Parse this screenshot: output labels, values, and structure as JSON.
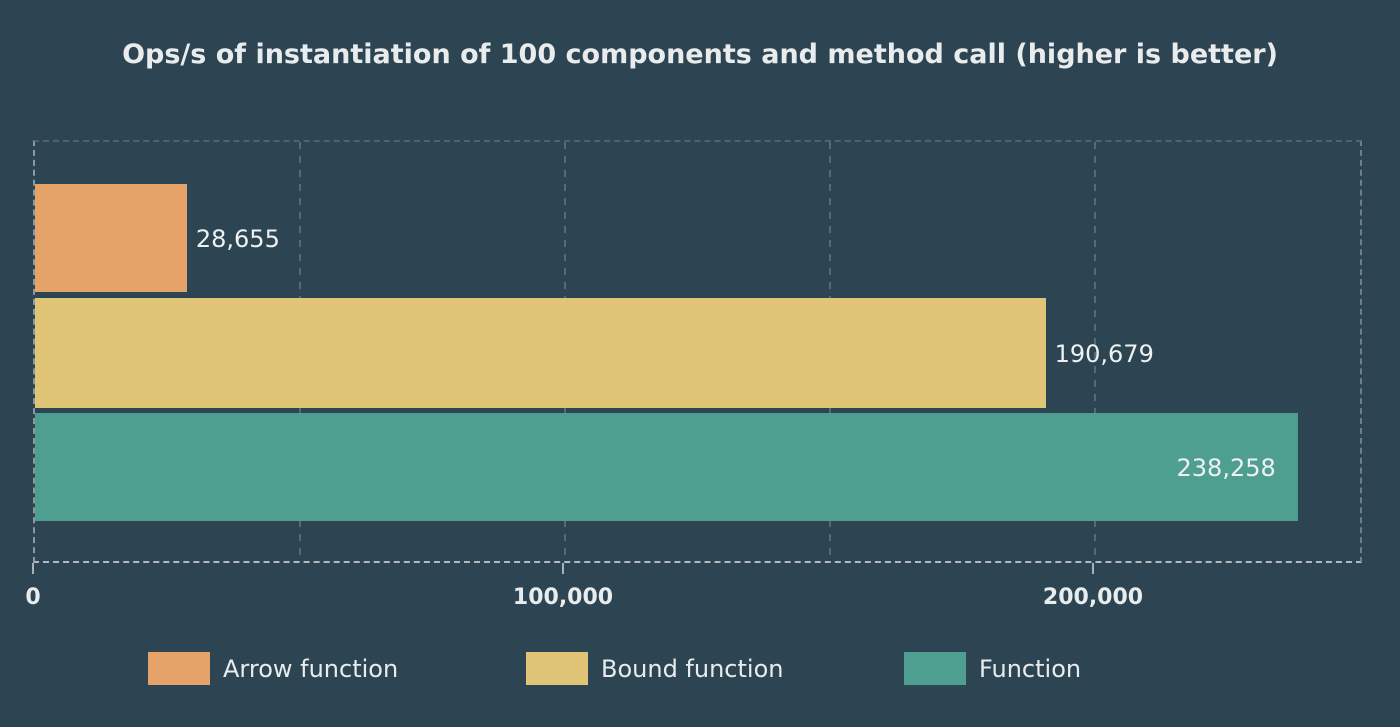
{
  "chart_data": {
    "type": "bar",
    "orientation": "horizontal",
    "title": "Ops/s of instantiation of 100 components and method call (higher is better)",
    "series": [
      {
        "name": "Arrow function",
        "value": 28655,
        "data_label": "28,655",
        "color": "#e6a369"
      },
      {
        "name": "Bound function",
        "value": 190679,
        "data_label": "190,679",
        "color": "#e1c577"
      },
      {
        "name": "Function",
        "value": 238258,
        "data_label": "238,258",
        "color": "#4f9f90"
      }
    ],
    "xlim": [
      0,
      250000
    ],
    "x_ticks": [
      {
        "value": 0,
        "label": "0"
      },
      {
        "value": 100000,
        "label": "100,000"
      },
      {
        "value": 200000,
        "label": "200,000"
      }
    ],
    "gridline_interval": 50000,
    "grid_style": "dashed",
    "legend_position": "bottom",
    "background_color": "#2d4552",
    "text_color": "#e9eced"
  }
}
